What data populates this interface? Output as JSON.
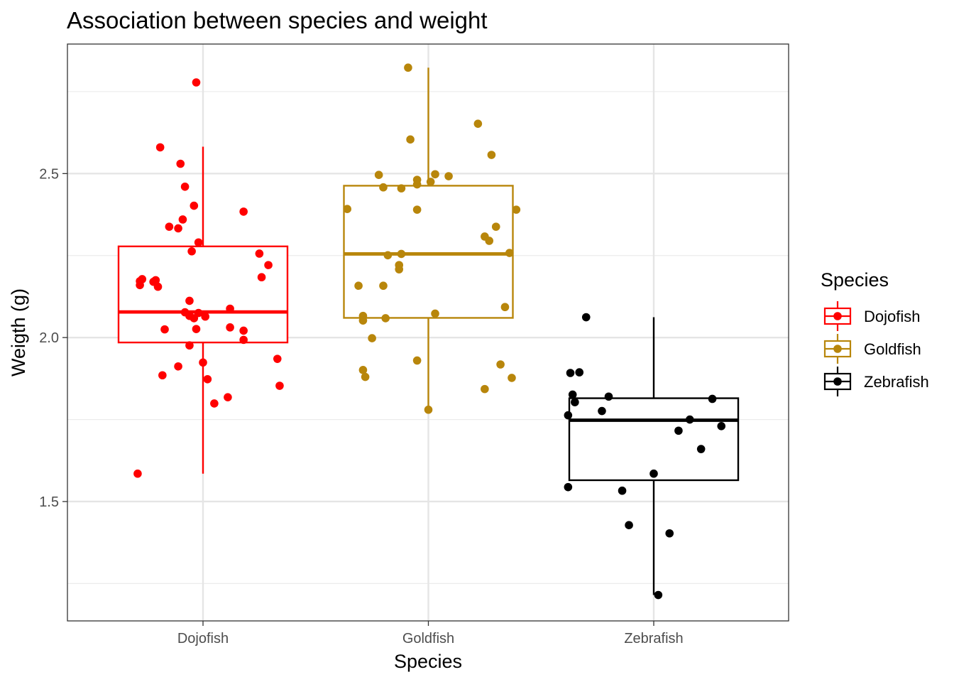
{
  "chart_data": {
    "type": "boxplot",
    "title": "Association between species and weight",
    "xlabel": "Species",
    "ylabel": "Weigth (g)",
    "categories": [
      "Dojofish",
      "Goldfish",
      "Zebrafish"
    ],
    "y_ticks": [
      1.5,
      2.0,
      2.5
    ],
    "y_tick_labels": [
      "1.5",
      "2.0",
      "2.5"
    ],
    "ylim": [
      1.136,
      2.895
    ],
    "grid": true,
    "legend": {
      "title": "Species",
      "position": "right",
      "entries": [
        "Dojofish",
        "Goldfish",
        "Zebrafish"
      ]
    },
    "series": [
      {
        "name": "Dojofish",
        "color": "#ff0000",
        "box": {
          "min": 1.585,
          "q1": 1.985,
          "median": 2.078,
          "q3": 2.278,
          "max": 2.582
        },
        "points": [
          [
            -0.19,
            2.58
          ],
          [
            -0.1,
            2.53
          ],
          [
            -0.22,
            2.17
          ],
          [
            -0.21,
            2.175
          ],
          [
            -0.2,
            2.155
          ],
          [
            -0.17,
            2.025
          ],
          [
            -0.18,
            1.885
          ],
          [
            -0.15,
            2.338
          ],
          [
            -0.11,
            2.333
          ],
          [
            -0.09,
            2.36
          ],
          [
            -0.08,
            2.46
          ],
          [
            -0.08,
            2.077
          ],
          [
            -0.06,
            2.066
          ],
          [
            -0.06,
            2.112
          ],
          [
            -0.05,
            2.263
          ],
          [
            -0.04,
            2.059
          ],
          [
            -0.11,
            1.912
          ],
          [
            -0.04,
            2.402
          ],
          [
            -0.03,
            2.778
          ],
          [
            -0.02,
            2.075
          ],
          [
            -0.03,
            2.026
          ],
          [
            -0.06,
            1.976
          ],
          [
            -0.02,
            2.29
          ],
          [
            0.0,
            1.924
          ],
          [
            0.01,
            2.064
          ],
          [
            0.02,
            1.873
          ],
          [
            0.05,
            1.799
          ],
          [
            0.11,
            1.818
          ],
          [
            0.12,
            2.088
          ],
          [
            0.12,
            2.031
          ],
          [
            0.18,
            2.384
          ],
          [
            0.18,
            2.021
          ],
          [
            0.18,
            1.993
          ],
          [
            0.25,
            2.256
          ],
          [
            0.26,
            2.184
          ],
          [
            0.29,
            2.221
          ],
          [
            0.33,
            1.935
          ],
          [
            0.34,
            1.853
          ],
          [
            -0.28,
            2.172
          ],
          [
            -0.27,
            2.178
          ],
          [
            -0.28,
            2.16
          ],
          [
            -0.29,
            1.585
          ]
        ]
      },
      {
        "name": "Goldfish",
        "color": "#b8860b",
        "box": {
          "min": 1.78,
          "q1": 2.06,
          "median": 2.255,
          "q3": 2.463,
          "max": 2.823
        },
        "points": [
          [
            -0.36,
            2.392
          ],
          [
            -0.31,
            2.158
          ],
          [
            -0.29,
            2.052
          ],
          [
            -0.29,
            2.066
          ],
          [
            -0.29,
            1.901
          ],
          [
            -0.28,
            1.88
          ],
          [
            -0.25,
            1.998
          ],
          [
            -0.22,
            2.496
          ],
          [
            -0.2,
            2.458
          ],
          [
            -0.2,
            2.158
          ],
          [
            -0.19,
            2.059
          ],
          [
            -0.18,
            2.251
          ],
          [
            -0.13,
            2.221
          ],
          [
            -0.13,
            2.208
          ],
          [
            -0.12,
            2.455
          ],
          [
            -0.12,
            2.255
          ],
          [
            -0.09,
            2.823
          ],
          [
            -0.08,
            2.604
          ],
          [
            -0.05,
            2.467
          ],
          [
            -0.05,
            2.481
          ],
          [
            -0.05,
            2.39
          ],
          [
            -0.05,
            1.93
          ],
          [
            0.01,
            2.475
          ],
          [
            0.03,
            2.498
          ],
          [
            0.03,
            2.073
          ],
          [
            0.0,
            1.78
          ],
          [
            0.09,
            2.492
          ],
          [
            0.22,
            2.652
          ],
          [
            0.25,
            2.308
          ],
          [
            0.27,
            2.295
          ],
          [
            0.28,
            2.557
          ],
          [
            0.3,
            2.338
          ],
          [
            0.32,
            1.918
          ],
          [
            0.34,
            2.093
          ],
          [
            0.36,
            2.258
          ],
          [
            0.37,
            1.877
          ],
          [
            0.39,
            2.39
          ],
          [
            0.25,
            1.843
          ]
        ]
      },
      {
        "name": "Zebrafish",
        "color": "#000000",
        "box": {
          "min": 1.215,
          "q1": 1.565,
          "median": 1.748,
          "q3": 1.815,
          "max": 2.062
        },
        "points": [
          [
            -0.38,
            1.544
          ],
          [
            -0.38,
            1.763
          ],
          [
            -0.37,
            1.892
          ],
          [
            -0.36,
            1.826
          ],
          [
            -0.35,
            1.803
          ],
          [
            -0.33,
            1.894
          ],
          [
            -0.3,
            2.062
          ],
          [
            -0.23,
            1.776
          ],
          [
            -0.2,
            1.82
          ],
          [
            -0.14,
            1.533
          ],
          [
            -0.11,
            1.428
          ],
          [
            0.0,
            1.585
          ],
          [
            0.02,
            1.215
          ],
          [
            0.11,
            1.716
          ],
          [
            0.07,
            1.403
          ],
          [
            0.16,
            1.75
          ],
          [
            0.21,
            1.66
          ],
          [
            0.26,
            1.813
          ],
          [
            0.3,
            1.73
          ]
        ]
      }
    ]
  }
}
